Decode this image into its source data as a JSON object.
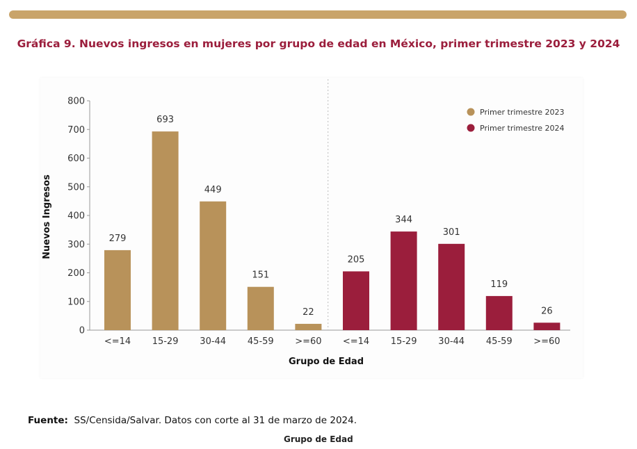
{
  "header": {
    "title": "Gráfica 9. Nuevos ingresos en mujeres por grupo de edad en México, primer trimestre 2023 y 2024"
  },
  "chart_data": {
    "type": "bar",
    "title": "Gráfica 9. Nuevos ingresos en mujeres por grupo de edad en México, primer trimestre 2023 y 2024",
    "xlabel": "Grupo de Edad",
    "ylabel": "Nuevos Ingresos",
    "ylim": [
      0,
      800
    ],
    "yticks": [
      0,
      100,
      200,
      300,
      400,
      500,
      600,
      700,
      800
    ],
    "grid": false,
    "legend_position": "top-right",
    "categories": [
      "<=14",
      "15-29",
      "30-44",
      "45-59",
      ">=60"
    ],
    "series": [
      {
        "name": "Primer trimestre 2023",
        "color": "#b8925a",
        "values": [
          279,
          693,
          449,
          151,
          22
        ]
      },
      {
        "name": "Primer trimestre 2024",
        "color": "#9b1e3c",
        "values": [
          205,
          344,
          301,
          119,
          26
        ]
      }
    ]
  },
  "footer": {
    "source_label": "Fuente:",
    "source_text": "SS/Censida/Salvar. Datos con corte al 31 de marzo de 2024.",
    "cut_text": "Grupo de Edad"
  }
}
